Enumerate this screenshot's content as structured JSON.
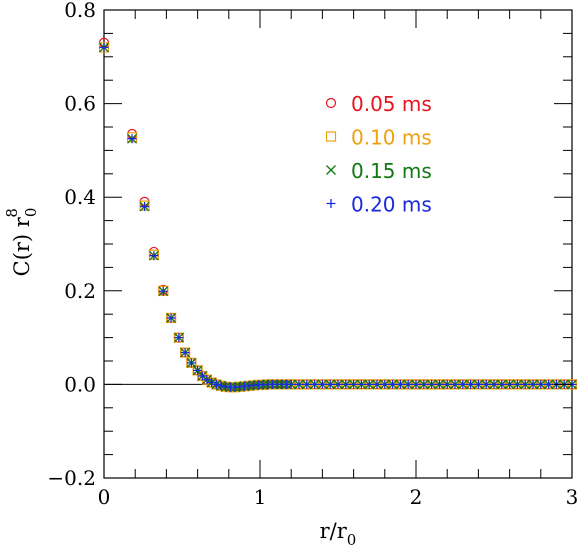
{
  "chart_data": {
    "type": "scatter",
    "xlabel": "r/r",
    "xlabel_sub": "0",
    "ylabel": "C(r) r",
    "ylabel_sub": "0",
    "ylabel_sup": "8",
    "xlim": [
      0,
      3
    ],
    "ylim": [
      -0.2,
      0.8
    ],
    "x_ticks": [
      0,
      1,
      2,
      3
    ],
    "x_tick_labels": [
      "0",
      "1",
      "2",
      "3"
    ],
    "y_ticks": [
      -0.2,
      0.0,
      0.2,
      0.4,
      0.6,
      0.8
    ],
    "y_tick_labels": [
      "−0.2",
      "0.0",
      "0.2",
      "0.4",
      "0.6",
      "0.8"
    ],
    "zero_line": true,
    "grid": false,
    "legend_position": "top-right",
    "series": [
      {
        "name": "0.05 ms",
        "marker": "circle",
        "color": "#e8141e",
        "x": [
          0,
          0.18,
          0.26,
          0.32,
          0.38
        ],
        "y": [
          0.73,
          0.535,
          0.39,
          0.283,
          0.202
        ]
      },
      {
        "name": "0.10 ms",
        "marker": "square",
        "color": "#f0a010",
        "x": [
          0,
          0.18,
          0.26,
          0.32,
          0.38
        ],
        "y": [
          0.72,
          0.528,
          0.382,
          0.277,
          0.2
        ]
      },
      {
        "name": "0.15 ms",
        "marker": "x",
        "color": "#127812",
        "x": [
          0,
          0.18,
          0.26,
          0.32,
          0.38
        ],
        "y": [
          0.72,
          0.525,
          0.38,
          0.275,
          0.199
        ]
      },
      {
        "name": "0.20 ms",
        "marker": "plus",
        "color": "#1a2ad8",
        "x": [
          0,
          0.18,
          0.26,
          0.32,
          0.38
        ],
        "y": [
          0.72,
          0.525,
          0.38,
          0.275,
          0.199
        ]
      }
    ],
    "shared_tail": {
      "x": [
        0.43,
        0.48,
        0.52,
        0.56,
        0.6,
        0.63,
        0.66,
        0.69,
        0.72,
        0.75,
        0.78,
        0.81,
        0.84,
        0.87,
        0.9,
        0.93,
        0.96,
        0.99,
        1.02,
        1.05,
        1.08,
        1.11,
        1.14,
        1.17,
        1.2,
        1.25,
        1.3,
        1.35,
        1.4,
        1.45,
        1.5,
        1.55,
        1.6,
        1.65,
        1.7,
        1.75,
        1.8,
        1.85,
        1.9,
        1.95,
        2.0,
        2.05,
        2.1,
        2.15,
        2.2,
        2.25,
        2.3,
        2.35,
        2.4,
        2.45,
        2.5,
        2.55,
        2.6,
        2.65,
        2.7,
        2.75,
        2.8,
        2.85,
        2.9,
        2.95,
        3.0
      ],
      "y": [
        0.142,
        0.1,
        0.068,
        0.046,
        0.03,
        0.018,
        0.01,
        0.004,
        0.0,
        -0.003,
        -0.005,
        -0.006,
        -0.006,
        -0.005,
        -0.004,
        -0.003,
        -0.002,
        -0.001,
        -0.001,
        0.0,
        0.0,
        0.0,
        0.0,
        0.0,
        0.0,
        0.0,
        0.0,
        0.0,
        0.0,
        0.0,
        0.0,
        0.0,
        0.0,
        0.0,
        0.0,
        0.0,
        0.0,
        0.0,
        0.0,
        0.0,
        0.0,
        0.0,
        0.0,
        0.0,
        0.0,
        0.0,
        0.0,
        0.0,
        0.0,
        0.0,
        0.0,
        0.0,
        0.0,
        0.0,
        0.0,
        0.0,
        0.0,
        0.0,
        0.0,
        0.0,
        0.0
      ]
    }
  }
}
